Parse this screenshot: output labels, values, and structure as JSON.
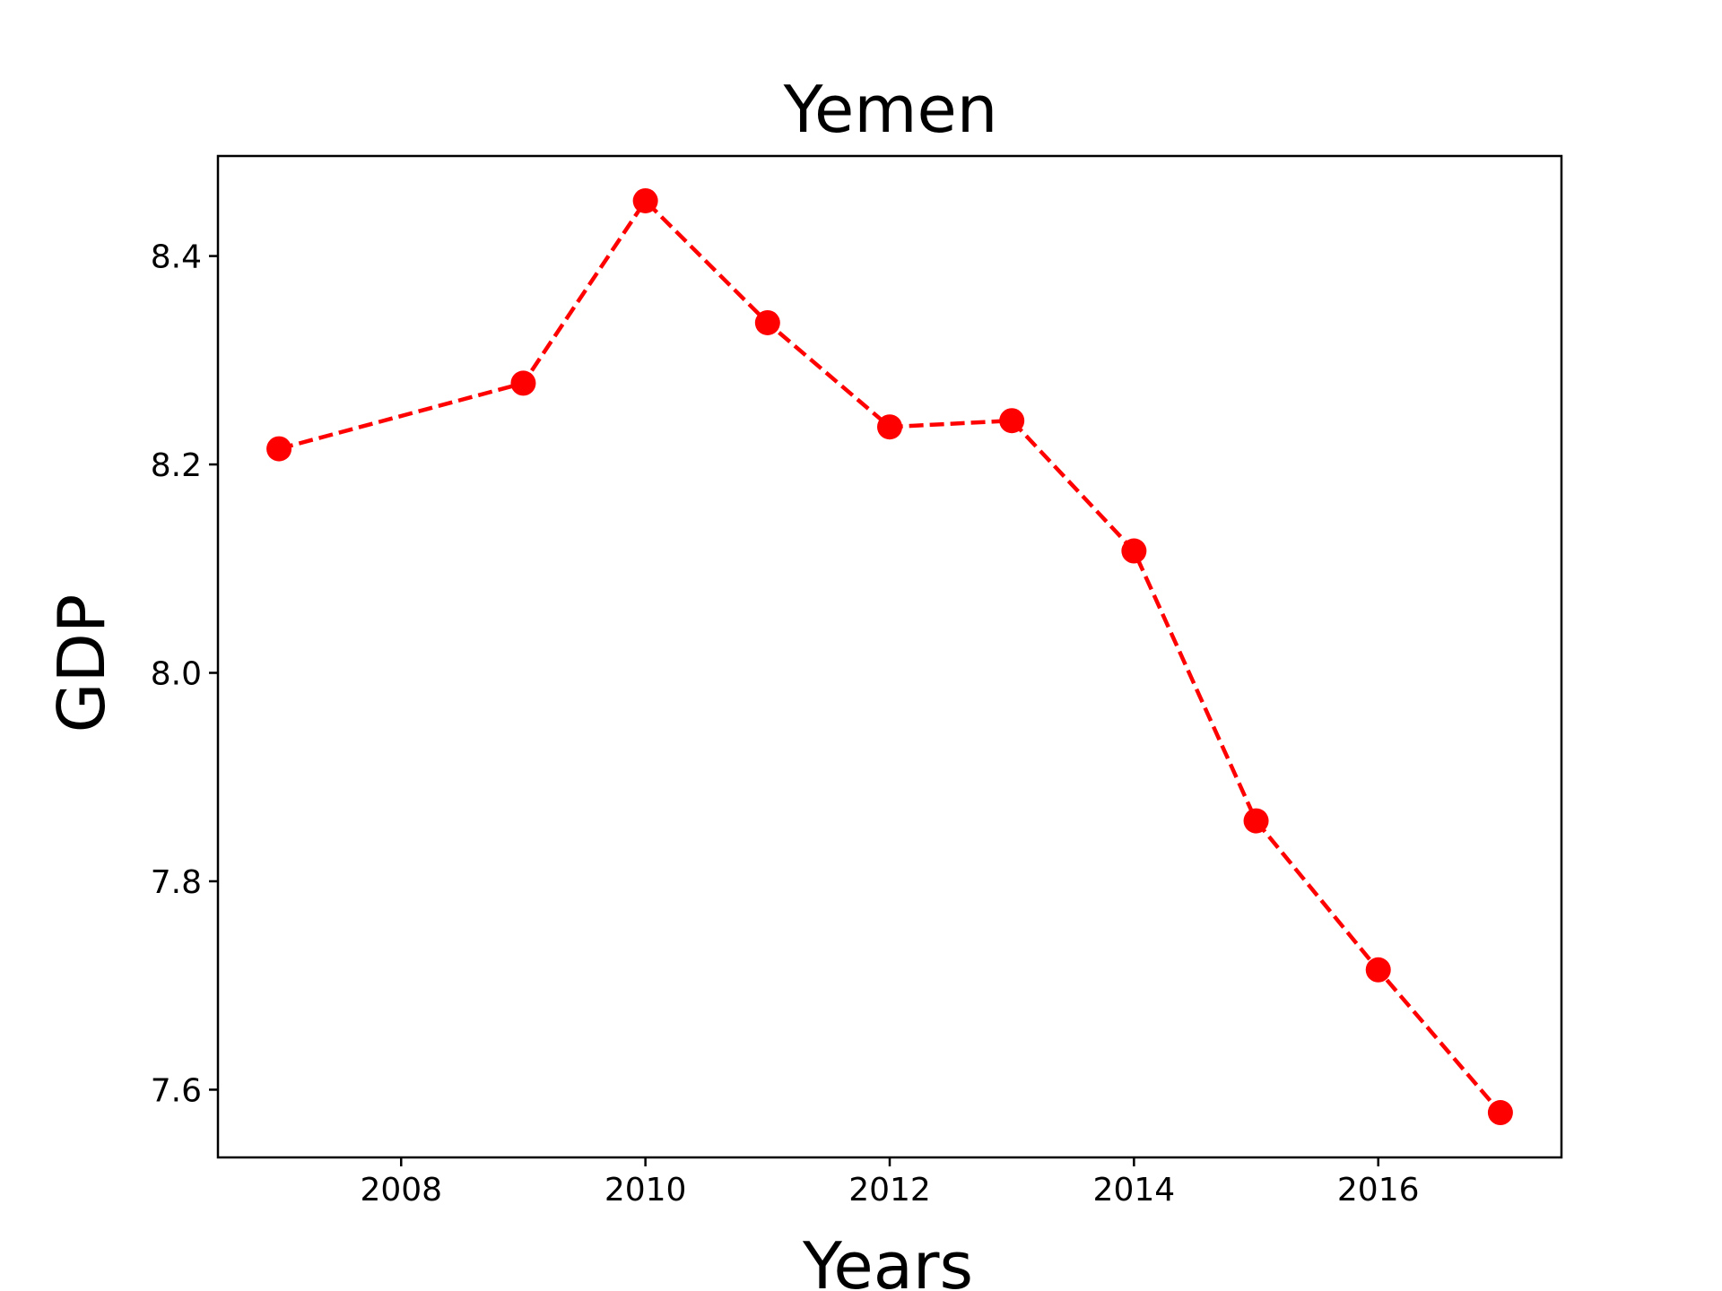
{
  "chart_data": {
    "type": "line",
    "title": "Yemen",
    "xlabel": "Years",
    "ylabel": "GDP",
    "x": [
      2007,
      2009,
      2010,
      2011,
      2012,
      2013,
      2014,
      2015,
      2016,
      2017
    ],
    "series": [
      {
        "values": [
          8.215,
          8.278,
          8.453,
          8.336,
          8.236,
          8.242,
          8.117,
          7.858,
          7.715,
          7.578
        ],
        "color": "#ff0000",
        "line_style": "dashed",
        "marker": "circle"
      }
    ],
    "xticks": [
      "2008",
      "2010",
      "2012",
      "2014",
      "2016"
    ],
    "yticks": [
      "7.6",
      "7.8",
      "8.0",
      "8.2",
      "8.4"
    ],
    "xlim": [
      2006.5,
      2017.5
    ],
    "ylim": [
      7.535,
      8.496
    ],
    "grid": false,
    "legend": false
  }
}
